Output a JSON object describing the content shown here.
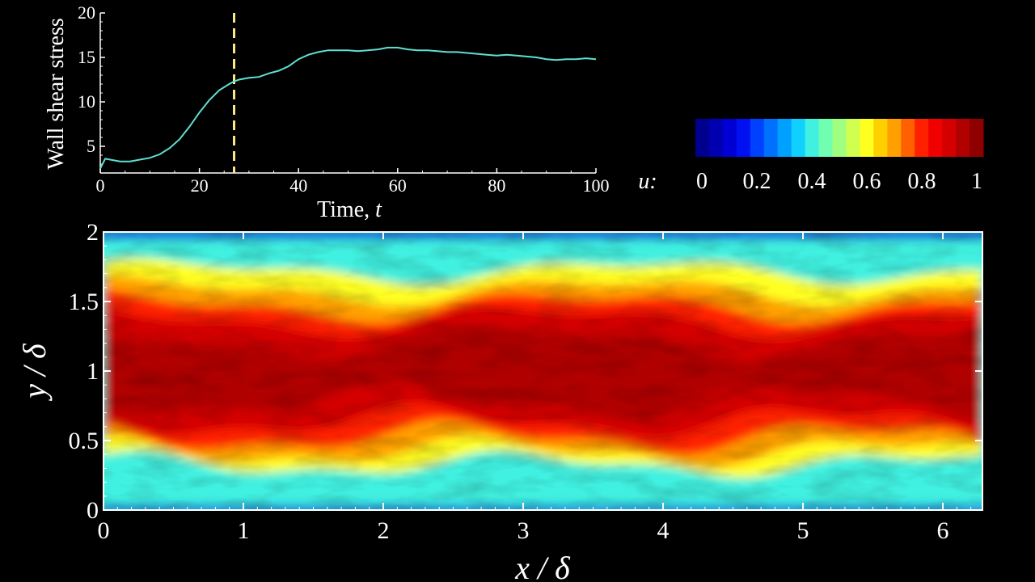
{
  "chart_data": [
    {
      "type": "line",
      "title": "",
      "xlabel": "Time, ",
      "xlabel_var": "t",
      "ylabel": "Wall shear stress",
      "xlim": [
        0,
        100
      ],
      "ylim": [
        2,
        20
      ],
      "x_ticks": [
        0,
        20,
        40,
        60,
        80,
        100
      ],
      "y_ticks": [
        5,
        10,
        15,
        20
      ],
      "line_color": "#5fe0d0",
      "marker_line": {
        "x": 27,
        "color": "#ffe680",
        "style": "dashed"
      },
      "series": [
        {
          "x": [
            0,
            1,
            2,
            3,
            4,
            5,
            6,
            8,
            10,
            12,
            14,
            16,
            18,
            20,
            22,
            24,
            26,
            27,
            28,
            30,
            32,
            34,
            36,
            38,
            40,
            42,
            44,
            46,
            48,
            50,
            52,
            54,
            56,
            58,
            60,
            62,
            64,
            66,
            68,
            70,
            72,
            74,
            76,
            78,
            80,
            82,
            84,
            86,
            88,
            90,
            92,
            94,
            96,
            98,
            100
          ],
          "values": [
            2.5,
            3.6,
            3.5,
            3.4,
            3.3,
            3.3,
            3.3,
            3.5,
            3.7,
            4.1,
            4.8,
            5.8,
            7.2,
            8.8,
            10.2,
            11.3,
            12.0,
            12.3,
            12.5,
            12.7,
            12.8,
            13.2,
            13.5,
            14.0,
            14.8,
            15.3,
            15.6,
            15.8,
            15.8,
            15.8,
            15.7,
            15.8,
            15.9,
            16.1,
            16.1,
            15.9,
            15.8,
            15.8,
            15.7,
            15.6,
            15.6,
            15.5,
            15.4,
            15.3,
            15.2,
            15.3,
            15.2,
            15.1,
            15.0,
            14.8,
            14.7,
            14.8,
            14.8,
            14.9,
            14.8
          ]
        }
      ]
    },
    {
      "type": "heatmap",
      "title": "",
      "xlabel": "x / δ",
      "ylabel": "y / δ",
      "xlim": [
        0,
        6.283
      ],
      "ylim": [
        0,
        2
      ],
      "x_ticks": [
        "0",
        "1",
        "2",
        "3",
        "4",
        "5",
        "6"
      ],
      "y_ticks": [
        "0",
        "0.5",
        "1",
        "1.5",
        "2"
      ],
      "field": "u",
      "field_description": "streamwise velocity, high (≈0.9–1) near channel centre y≈1, low (≈0.3–0.5) near walls y=0 and y=2"
    }
  ],
  "colorbar": {
    "label": "u:",
    "min": 0,
    "max": 1,
    "ticks": [
      "0",
      "0.2",
      "0.4",
      "0.6",
      "0.8",
      "1"
    ],
    "colors": [
      "#00008f",
      "#0000b0",
      "#0000d4",
      "#0010f0",
      "#0040ff",
      "#0070ff",
      "#00a0ff",
      "#10d0ff",
      "#40f0e0",
      "#70ffb0",
      "#a0ff80",
      "#d0ff50",
      "#ffff20",
      "#ffd000",
      "#ffa000",
      "#ff6000",
      "#ff2000",
      "#f00000",
      "#d40000",
      "#b00000",
      "#8f0000"
    ]
  }
}
